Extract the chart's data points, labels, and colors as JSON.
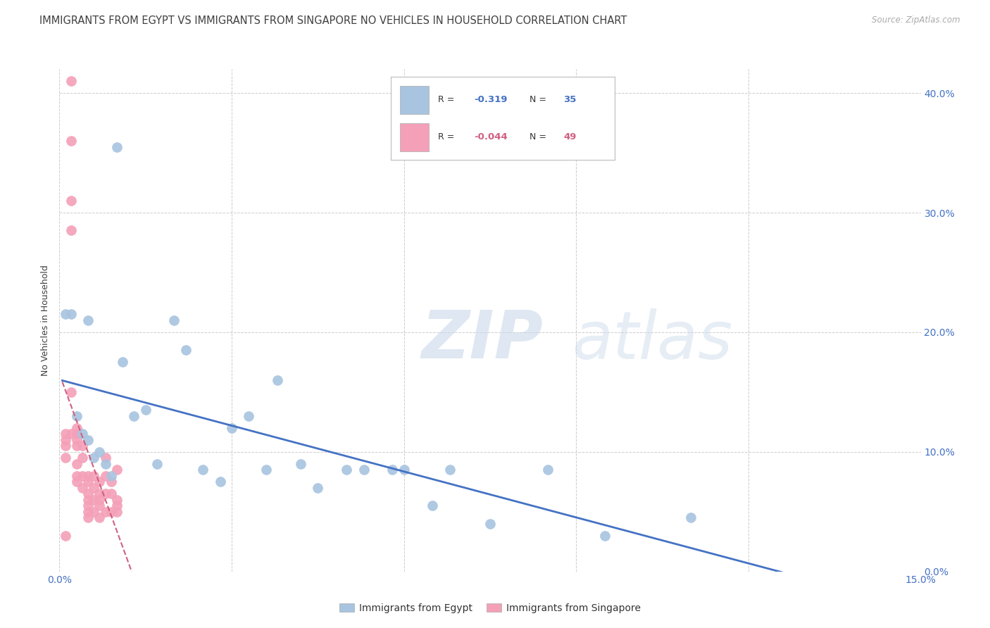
{
  "title": "IMMIGRANTS FROM EGYPT VS IMMIGRANTS FROM SINGAPORE NO VEHICLES IN HOUSEHOLD CORRELATION CHART",
  "source": "Source: ZipAtlas.com",
  "ylabel_label": "No Vehicles in Household",
  "xlim": [
    0.0,
    0.15
  ],
  "ylim": [
    0.0,
    0.42
  ],
  "egypt_color": "#a8c4e0",
  "singapore_color": "#f4a0b8",
  "trend_egypt_color": "#4472c4",
  "trend_singapore_color": "#d06080",
  "watermark_zip": "ZIP",
  "watermark_atlas": "atlas",
  "background_color": "#ffffff",
  "grid_color": "#cccccc",
  "axis_color": "#4472c4",
  "title_color": "#404040",
  "egypt_x": [
    0.001,
    0.002,
    0.003,
    0.004,
    0.005,
    0.005,
    0.006,
    0.007,
    0.008,
    0.009,
    0.01,
    0.011,
    0.013,
    0.015,
    0.017,
    0.02,
    0.022,
    0.025,
    0.028,
    0.03,
    0.033,
    0.036,
    0.038,
    0.042,
    0.045,
    0.05,
    0.053,
    0.058,
    0.06,
    0.065,
    0.068,
    0.075,
    0.085,
    0.095,
    0.11
  ],
  "egypt_y": [
    0.215,
    0.215,
    0.13,
    0.115,
    0.11,
    0.21,
    0.095,
    0.1,
    0.09,
    0.08,
    0.355,
    0.175,
    0.13,
    0.135,
    0.09,
    0.21,
    0.185,
    0.085,
    0.075,
    0.12,
    0.13,
    0.085,
    0.16,
    0.09,
    0.07,
    0.085,
    0.085,
    0.085,
    0.085,
    0.055,
    0.085,
    0.04,
    0.085,
    0.03,
    0.045
  ],
  "singapore_x": [
    0.001,
    0.001,
    0.001,
    0.001,
    0.001,
    0.002,
    0.002,
    0.002,
    0.002,
    0.002,
    0.002,
    0.003,
    0.003,
    0.003,
    0.003,
    0.003,
    0.003,
    0.003,
    0.004,
    0.004,
    0.004,
    0.004,
    0.005,
    0.005,
    0.005,
    0.005,
    0.005,
    0.005,
    0.005,
    0.006,
    0.006,
    0.006,
    0.006,
    0.007,
    0.007,
    0.007,
    0.007,
    0.007,
    0.008,
    0.008,
    0.008,
    0.008,
    0.009,
    0.009,
    0.009,
    0.01,
    0.01,
    0.01,
    0.01
  ],
  "singapore_y": [
    0.115,
    0.11,
    0.105,
    0.095,
    0.03,
    0.41,
    0.36,
    0.31,
    0.285,
    0.15,
    0.115,
    0.12,
    0.115,
    0.11,
    0.105,
    0.09,
    0.08,
    0.075,
    0.105,
    0.095,
    0.08,
    0.07,
    0.08,
    0.075,
    0.065,
    0.06,
    0.055,
    0.05,
    0.045,
    0.08,
    0.07,
    0.06,
    0.05,
    0.075,
    0.065,
    0.06,
    0.055,
    0.045,
    0.095,
    0.08,
    0.065,
    0.05,
    0.075,
    0.065,
    0.05,
    0.06,
    0.055,
    0.05,
    0.085
  ]
}
